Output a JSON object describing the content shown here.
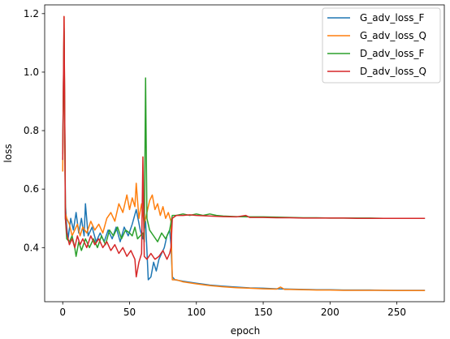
{
  "chart_data": {
    "type": "line",
    "xlabel": "epoch",
    "ylabel": "loss",
    "xlim": [
      -13.5,
      285.5
    ],
    "ylim": [
      0.215,
      1.23
    ],
    "xticks": [
      0,
      50,
      100,
      150,
      200,
      250
    ],
    "yticks": [
      0.4,
      0.6,
      0.8,
      1.0,
      1.2
    ],
    "grid": false,
    "legend_position": "top-right",
    "series": [
      {
        "name": "G_adv_loss_F",
        "color": "#1f77b4",
        "points": [
          [
            0,
            0.72
          ],
          [
            1,
            1.15
          ],
          [
            2,
            0.55
          ],
          [
            3,
            0.47
          ],
          [
            4,
            0.43
          ],
          [
            6,
            0.5
          ],
          [
            8,
            0.46
          ],
          [
            10,
            0.52
          ],
          [
            12,
            0.45
          ],
          [
            14,
            0.5
          ],
          [
            16,
            0.44
          ],
          [
            17,
            0.55
          ],
          [
            19,
            0.44
          ],
          [
            22,
            0.47
          ],
          [
            25,
            0.42
          ],
          [
            28,
            0.45
          ],
          [
            31,
            0.42
          ],
          [
            34,
            0.46
          ],
          [
            37,
            0.43
          ],
          [
            40,
            0.47
          ],
          [
            43,
            0.42
          ],
          [
            46,
            0.47
          ],
          [
            49,
            0.44
          ],
          [
            52,
            0.48
          ],
          [
            55,
            0.53
          ],
          [
            58,
            0.46
          ],
          [
            60,
            0.43
          ],
          [
            62,
            0.49
          ],
          [
            64,
            0.29
          ],
          [
            66,
            0.3
          ],
          [
            68,
            0.35
          ],
          [
            70,
            0.32
          ],
          [
            72,
            0.36
          ],
          [
            74,
            0.38
          ],
          [
            76,
            0.4
          ],
          [
            78,
            0.44
          ],
          [
            80,
            0.46
          ],
          [
            81,
            0.41
          ],
          [
            82,
            0.3
          ],
          [
            84,
            0.29
          ],
          [
            90,
            0.285
          ],
          [
            100,
            0.278
          ],
          [
            110,
            0.272
          ],
          [
            120,
            0.268
          ],
          [
            130,
            0.265
          ],
          [
            140,
            0.262
          ],
          [
            150,
            0.261
          ],
          [
            160,
            0.259
          ],
          [
            170,
            0.258
          ],
          [
            180,
            0.257
          ],
          [
            190,
            0.256
          ],
          [
            200,
            0.256
          ],
          [
            210,
            0.255
          ],
          [
            220,
            0.255
          ],
          [
            230,
            0.255
          ],
          [
            240,
            0.254
          ],
          [
            250,
            0.254
          ],
          [
            260,
            0.254
          ],
          [
            271,
            0.254
          ]
        ]
      },
      {
        "name": "G_adv_loss_Q",
        "color": "#ff7f0e",
        "points": [
          [
            0,
            0.66
          ],
          [
            1,
            1.19
          ],
          [
            2,
            0.52
          ],
          [
            3,
            0.5
          ],
          [
            5,
            0.48
          ],
          [
            7,
            0.44
          ],
          [
            9,
            0.46
          ],
          [
            11,
            0.48
          ],
          [
            13,
            0.44
          ],
          [
            15,
            0.47
          ],
          [
            18,
            0.45
          ],
          [
            21,
            0.49
          ],
          [
            24,
            0.46
          ],
          [
            27,
            0.48
          ],
          [
            30,
            0.45
          ],
          [
            33,
            0.5
          ],
          [
            36,
            0.52
          ],
          [
            39,
            0.49
          ],
          [
            42,
            0.55
          ],
          [
            45,
            0.52
          ],
          [
            48,
            0.58
          ],
          [
            50,
            0.53
          ],
          [
            52,
            0.57
          ],
          [
            54,
            0.54
          ],
          [
            55,
            0.62
          ],
          [
            57,
            0.5
          ],
          [
            59,
            0.55
          ],
          [
            61,
            0.48
          ],
          [
            63,
            0.52
          ],
          [
            65,
            0.56
          ],
          [
            67,
            0.58
          ],
          [
            69,
            0.53
          ],
          [
            71,
            0.55
          ],
          [
            73,
            0.51
          ],
          [
            75,
            0.54
          ],
          [
            77,
            0.5
          ],
          [
            79,
            0.52
          ],
          [
            81,
            0.49
          ],
          [
            82,
            0.29
          ],
          [
            85,
            0.29
          ],
          [
            90,
            0.283
          ],
          [
            100,
            0.276
          ],
          [
            110,
            0.27
          ],
          [
            120,
            0.266
          ],
          [
            130,
            0.263
          ],
          [
            140,
            0.261
          ],
          [
            150,
            0.259
          ],
          [
            160,
            0.258
          ],
          [
            163,
            0.265
          ],
          [
            166,
            0.257
          ],
          [
            170,
            0.257
          ],
          [
            180,
            0.256
          ],
          [
            190,
            0.255
          ],
          [
            200,
            0.255
          ],
          [
            210,
            0.254
          ],
          [
            220,
            0.254
          ],
          [
            230,
            0.254
          ],
          [
            240,
            0.254
          ],
          [
            250,
            0.253
          ],
          [
            260,
            0.253
          ],
          [
            271,
            0.253
          ]
        ]
      },
      {
        "name": "D_adv_loss_F",
        "color": "#2ca02c",
        "points": [
          [
            0,
            0.7
          ],
          [
            1,
            1.14
          ],
          [
            2,
            0.5
          ],
          [
            3,
            0.43
          ],
          [
            5,
            0.42
          ],
          [
            7,
            0.44
          ],
          [
            9,
            0.4
          ],
          [
            10,
            0.37
          ],
          [
            12,
            0.42
          ],
          [
            14,
            0.39
          ],
          [
            17,
            0.43
          ],
          [
            20,
            0.4
          ],
          [
            23,
            0.43
          ],
          [
            26,
            0.4
          ],
          [
            29,
            0.44
          ],
          [
            32,
            0.41
          ],
          [
            35,
            0.46
          ],
          [
            38,
            0.44
          ],
          [
            41,
            0.47
          ],
          [
            44,
            0.43
          ],
          [
            47,
            0.46
          ],
          [
            50,
            0.45
          ],
          [
            52,
            0.44
          ],
          [
            54,
            0.47
          ],
          [
            56,
            0.43
          ],
          [
            58,
            0.44
          ],
          [
            60,
            0.45
          ],
          [
            61,
            0.42
          ],
          [
            62,
            0.98
          ],
          [
            63,
            0.5
          ],
          [
            65,
            0.46
          ],
          [
            68,
            0.44
          ],
          [
            71,
            0.42
          ],
          [
            74,
            0.45
          ],
          [
            77,
            0.43
          ],
          [
            80,
            0.46
          ],
          [
            82,
            0.51
          ],
          [
            85,
            0.51
          ],
          [
            90,
            0.515
          ],
          [
            95,
            0.51
          ],
          [
            100,
            0.515
          ],
          [
            105,
            0.51
          ],
          [
            110,
            0.515
          ],
          [
            115,
            0.51
          ],
          [
            120,
            0.508
          ],
          [
            130,
            0.506
          ],
          [
            140,
            0.505
          ],
          [
            150,
            0.505
          ],
          [
            160,
            0.504
          ],
          [
            170,
            0.503
          ],
          [
            180,
            0.502
          ],
          [
            190,
            0.502
          ],
          [
            200,
            0.501
          ],
          [
            210,
            0.501
          ],
          [
            220,
            0.501
          ],
          [
            230,
            0.501
          ],
          [
            240,
            0.5
          ],
          [
            250,
            0.5
          ],
          [
            260,
            0.5
          ],
          [
            271,
            0.5
          ]
        ]
      },
      {
        "name": "D_adv_loss_Q",
        "color": "#d62728",
        "points": [
          [
            0,
            0.7
          ],
          [
            1,
            1.19
          ],
          [
            2,
            0.5
          ],
          [
            3,
            0.45
          ],
          [
            5,
            0.41
          ],
          [
            7,
            0.43
          ],
          [
            9,
            0.4
          ],
          [
            11,
            0.44
          ],
          [
            13,
            0.41
          ],
          [
            15,
            0.43
          ],
          [
            18,
            0.4
          ],
          [
            21,
            0.44
          ],
          [
            24,
            0.41
          ],
          [
            27,
            0.43
          ],
          [
            30,
            0.4
          ],
          [
            33,
            0.42
          ],
          [
            36,
            0.39
          ],
          [
            39,
            0.41
          ],
          [
            42,
            0.38
          ],
          [
            45,
            0.4
          ],
          [
            48,
            0.37
          ],
          [
            51,
            0.39
          ],
          [
            54,
            0.36
          ],
          [
            55,
            0.3
          ],
          [
            57,
            0.35
          ],
          [
            59,
            0.38
          ],
          [
            60,
            0.71
          ],
          [
            61,
            0.37
          ],
          [
            63,
            0.36
          ],
          [
            66,
            0.38
          ],
          [
            69,
            0.36
          ],
          [
            72,
            0.37
          ],
          [
            75,
            0.39
          ],
          [
            78,
            0.36
          ],
          [
            80,
            0.38
          ],
          [
            81,
            0.4
          ],
          [
            82,
            0.5
          ],
          [
            85,
            0.51
          ],
          [
            90,
            0.51
          ],
          [
            95,
            0.512
          ],
          [
            100,
            0.51
          ],
          [
            110,
            0.508
          ],
          [
            120,
            0.506
          ],
          [
            130,
            0.505
          ],
          [
            137,
            0.51
          ],
          [
            140,
            0.503
          ],
          [
            150,
            0.503
          ],
          [
            160,
            0.502
          ],
          [
            170,
            0.502
          ],
          [
            180,
            0.501
          ],
          [
            190,
            0.501
          ],
          [
            200,
            0.501
          ],
          [
            210,
            0.501
          ],
          [
            220,
            0.5
          ],
          [
            230,
            0.5
          ],
          [
            240,
            0.5
          ],
          [
            250,
            0.5
          ],
          [
            260,
            0.5
          ],
          [
            271,
            0.5
          ]
        ]
      }
    ]
  }
}
